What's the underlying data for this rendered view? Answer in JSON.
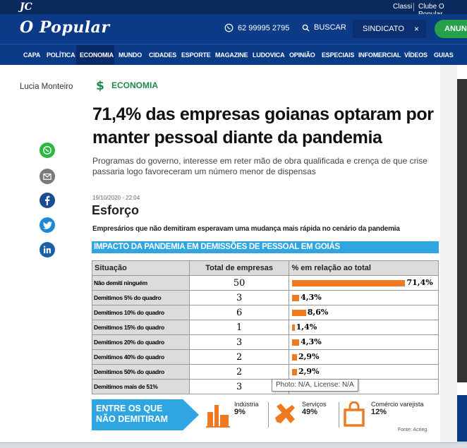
{
  "topbar": {
    "logo": "JC",
    "link1": "Classi",
    "link2": "Clube O Popular"
  },
  "header": {
    "logo": "O Popular",
    "phone": "62 99995 2795",
    "search": "BUSCAR",
    "sindicato": "SINDICATO",
    "close": "×",
    "cta": "ANUN"
  },
  "nav": {
    "items": [
      "CAPA",
      "POLÍTICA",
      "ECONOMIA",
      "MUNDO",
      "CIDADES",
      "ESPORTE",
      "MAGAZINE",
      "LUDOVICA",
      "OPINIÃO",
      "ESPECIAIS",
      "INFOMERCIAL",
      "VÍDEOS",
      "GUIAS"
    ],
    "active": "ECONOMIA"
  },
  "article": {
    "author": "Lucia Monteiro",
    "section": "ECONOMIA",
    "headline": "71,4% das empresas goianas optaram por manter pessoal diante da pandemia",
    "subtitle": "Programas do governo, interesse em reter mão de obra qualificada e crença de que crise passaria logo favoreceram um número menor de dispensas"
  },
  "share": [
    "whatsapp-icon",
    "email-icon",
    "facebook-icon",
    "twitter-icon",
    "linkedin-icon"
  ],
  "infographic": {
    "date": "19/10/2020 - 22:04",
    "title": "Esforço",
    "lead": "Empresários que não demitiram esperavam uma mudança mais rápida no cenário da pandemia",
    "band": "IMPACTO DA PANDEMIA EM DEMISSÕES DE PESSOAL EM GOIÁS",
    "headers": [
      "Situação",
      "Total de empresas",
      "% em relação ao total"
    ],
    "rows": [
      {
        "situacao": "Não demiti ninguém",
        "total": "50",
        "pct": "71,4%",
        "value": 71.4
      },
      {
        "situacao": "Demitimos 5% do quadro",
        "total": "3",
        "pct": "4,3%",
        "value": 4.3
      },
      {
        "situacao": "Demitimos 10% do quadro",
        "total": "6",
        "pct": "8,6%",
        "value": 8.6
      },
      {
        "situacao": "Demitimos 15% do quadro",
        "total": "1",
        "pct": "1,4%",
        "value": 1.4
      },
      {
        "situacao": "Demitimos 20% do quadro",
        "total": "3",
        "pct": "4,3%",
        "value": 4.3
      },
      {
        "situacao": "Demitimos 40% do quadro",
        "total": "2",
        "pct": "2,9%",
        "value": 2.9
      },
      {
        "situacao": "Demitimos 50% do quadro",
        "total": "2",
        "pct": "2,9%",
        "value": 2.9
      },
      {
        "situacao": "Demitimos mais de 51%",
        "total": "3",
        "pct": "",
        "value": null
      }
    ],
    "footer": {
      "arrow": [
        "ENTRE OS QUE",
        "NÃO DEMITIRAM"
      ],
      "items": [
        {
          "label": "Indústria",
          "value": "9%"
        },
        {
          "label": "Serviços",
          "value": "49%"
        },
        {
          "label": "Comércio varejista",
          "value": "12%"
        }
      ],
      "credit": "Fonte: Acrieg"
    }
  },
  "tooltip": "Photo: N/A, License: N/A",
  "colors": {
    "navy": "#0b3a86",
    "green": "#1d8a4a",
    "orange": "#ef7a22",
    "blue": "#2fa6e2"
  }
}
